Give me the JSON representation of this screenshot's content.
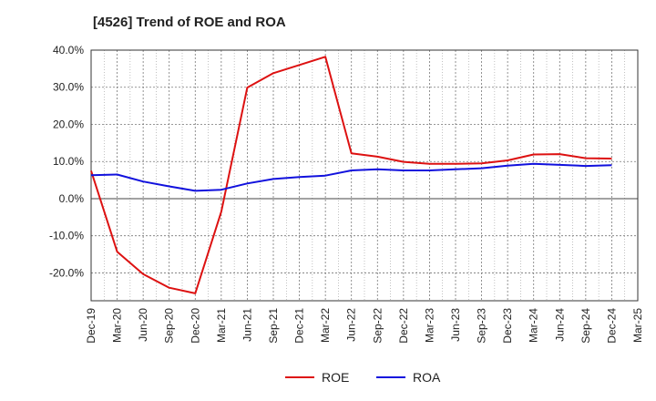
{
  "chart_data": {
    "type": "line",
    "title": "[4526]  Trend of ROE and ROA",
    "xlabel": "",
    "ylabel": "",
    "categories": [
      "Dec-19",
      "Mar-20",
      "Jun-20",
      "Sep-20",
      "Dec-20",
      "Mar-21",
      "Jun-21",
      "Sep-21",
      "Dec-21",
      "Mar-22",
      "Jun-22",
      "Sep-22",
      "Dec-22",
      "Mar-23",
      "Jun-23",
      "Sep-23",
      "Dec-23",
      "Mar-24",
      "Jun-24",
      "Sep-24",
      "Dec-24",
      "Mar-25"
    ],
    "ylim": [
      -27.5,
      40
    ],
    "yticks": [
      40,
      30,
      20,
      10,
      0,
      -10,
      -20
    ],
    "ytick_labels": [
      "40.0%",
      "30.0%",
      "20.0%",
      "10.0%",
      "0.0%",
      "-10.0%",
      "-20.0%"
    ],
    "grid": true,
    "legend_position": "bottom-center",
    "series": [
      {
        "name": "ROE",
        "color": "#dd1111",
        "values": [
          7.5,
          -14.3,
          -20.3,
          -24.0,
          -25.5,
          -3.5,
          29.9,
          33.8,
          36.0,
          38.2,
          12.2,
          11.3,
          9.9,
          9.4,
          9.4,
          9.5,
          10.3,
          11.9,
          12.0,
          10.9,
          10.8,
          null
        ]
      },
      {
        "name": "ROA",
        "color": "#1111dd",
        "values": [
          6.3,
          6.5,
          4.6,
          3.3,
          2.1,
          2.4,
          4.1,
          5.3,
          5.8,
          6.2,
          7.6,
          7.9,
          7.6,
          7.6,
          7.9,
          8.2,
          8.9,
          9.4,
          9.1,
          8.8,
          9.0,
          null
        ]
      }
    ]
  }
}
